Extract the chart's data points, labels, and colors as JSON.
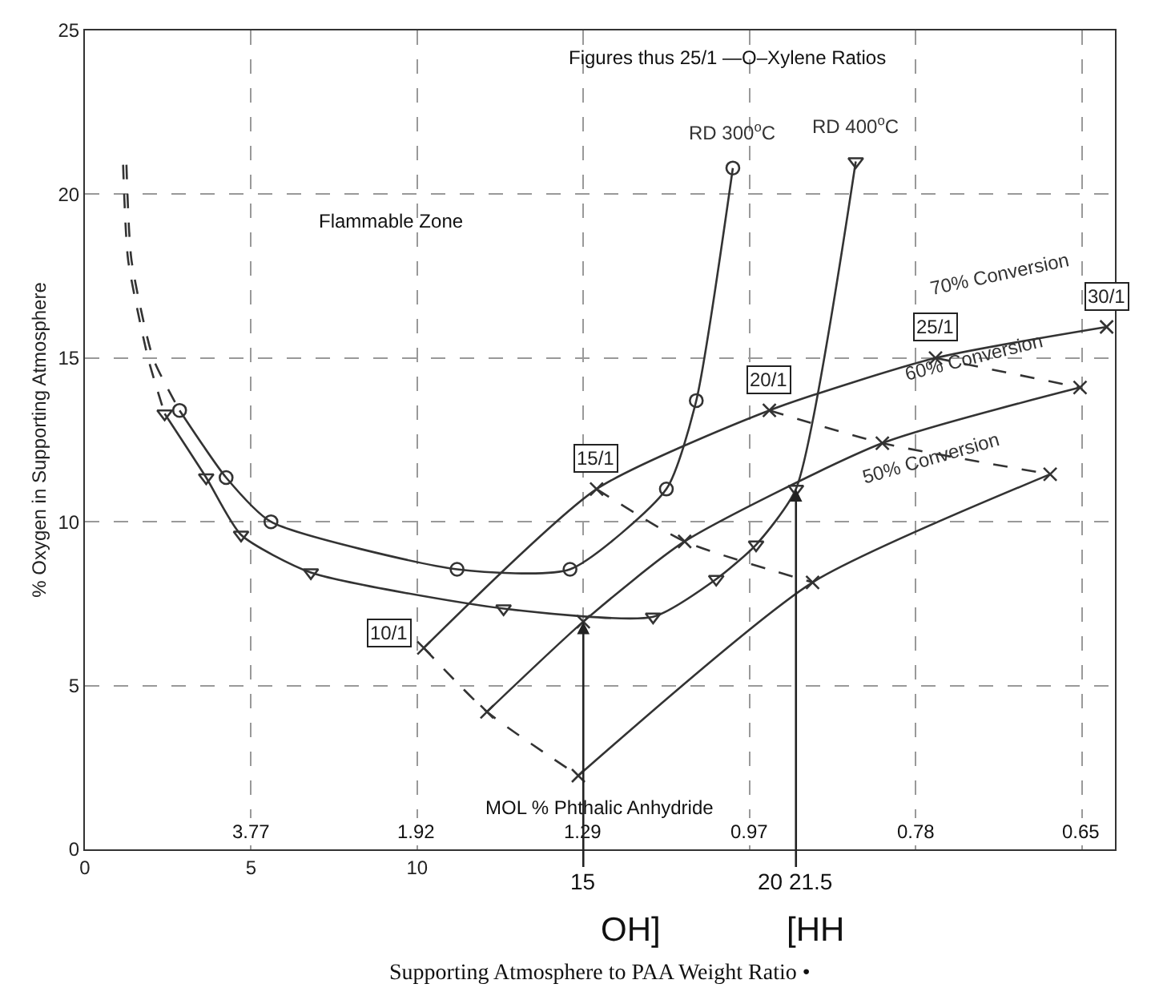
{
  "chart_data": {
    "type": "line",
    "ylabel": "% Oxygen in Supporting Atmosphere",
    "xlim": [
      0,
      31
    ],
    "ylim": [
      0,
      25
    ],
    "xticks": [
      0,
      5,
      10,
      {
        "value": 15,
        "label": null
      },
      {
        "value": 20,
        "label": null
      },
      {
        "value": 25,
        "label": null
      },
      {
        "value": 30,
        "label": null
      }
    ],
    "yticks": [
      0,
      5,
      10,
      15,
      20,
      25
    ],
    "grid": true,
    "legend": false,
    "series": [
      {
        "name": "RD 300$^{o}$C",
        "color": "#333333",
        "marker": "circle",
        "line_style": "solid",
        "x": [
          2.85,
          4.25,
          5.6,
          11.2,
          14.6,
          17.5,
          18.4,
          19.5
        ],
        "values": [
          13.4,
          11.35,
          10.0,
          8.55,
          8.55,
          11.0,
          13.7,
          20.8
        ]
      },
      {
        "name": "RD 400$^{o}$C",
        "color": "#333333",
        "marker": "triangle",
        "line_style": "solid",
        "x": [
          2.4,
          3.65,
          4.7,
          6.8,
          12.6,
          17.1,
          19.0,
          20.2,
          21.4,
          23.2
        ],
        "values": [
          13.3,
          11.35,
          9.6,
          8.45,
          7.35,
          7.1,
          8.25,
          9.3,
          11.0,
          21.0
        ]
      },
      {
        "color": "#333333",
        "marker": "none",
        "line_style": "dashed",
        "x": [
          1.25,
          1.4,
          2.05,
          2.85
        ],
        "values": [
          20.9,
          18.0,
          15.0,
          13.4
        ]
      },
      {
        "color": "#333333",
        "marker": "none",
        "line_style": "dashed",
        "x": [
          1.15,
          1.3,
          1.9,
          2.4
        ],
        "values": [
          20.9,
          18.0,
          15.0,
          13.3
        ]
      },
      {
        "name": "70% Conversion",
        "color": "#333333",
        "marker": "cross",
        "line_style": "solid",
        "x": [
          10.2,
          15.4,
          20.6,
          25.6,
          30.75
        ],
        "values": [
          6.15,
          11.0,
          13.4,
          15.0,
          15.95
        ]
      },
      {
        "name": "60% Conversion",
        "color": "#333333",
        "marker": "cross",
        "line_style": "solid",
        "x": [
          12.1,
          15.0,
          18.05,
          24.0,
          29.95
        ],
        "values": [
          4.2,
          6.95,
          9.4,
          12.4,
          14.1
        ]
      },
      {
        "name": "50% Conversion",
        "color": "#333333",
        "marker": "cross",
        "line_style": "solid",
        "x": [
          14.85,
          21.9,
          29.05
        ],
        "values": [
          2.25,
          8.15,
          11.45
        ]
      },
      {
        "color": "#333333",
        "marker": "none",
        "line_style": "dashed",
        "x": [
          10.2,
          12.1,
          14.85
        ],
        "values": [
          6.15,
          4.2,
          2.25
        ]
      },
      {
        "color": "#333333",
        "marker": "none",
        "line_style": "dashed",
        "x": [
          15.4,
          18.05,
          21.9
        ],
        "values": [
          11.0,
          9.4,
          8.15
        ]
      },
      {
        "color": "#333333",
        "marker": "none",
        "line_style": "dashed",
        "x": [
          20.6,
          24.0,
          29.05
        ],
        "values": [
          13.4,
          12.4,
          11.45
        ]
      },
      {
        "color": "#333333",
        "marker": "none",
        "line_style": "dashed",
        "x": [
          25.6,
          29.95
        ],
        "values": [
          15.0,
          14.1
        ]
      }
    ],
    "annotations": [
      "Figures thus 25/1 —O–Xylene Ratios",
      "Flammable Zone",
      "MOL % Phthalic Anhydride",
      "3.77",
      "1.92",
      "1.29",
      "0.97",
      "0.78",
      "0.65",
      {
        "text": "10/1",
        "x": 10.2,
        "y": 6.15
      },
      {
        "text": "15/1",
        "x": 15.4,
        "y": 11.0
      },
      {
        "text": "20/1",
        "x": 20.6,
        "y": 13.4
      },
      {
        "text": "25/1",
        "x": 25.6,
        "y": 15.0
      },
      {
        "text": "30/1",
        "x": 30.75,
        "y": 15.95
      },
      {
        "text": "15",
        "x": 15.0,
        "y": 6.95
      },
      {
        "text": "20 21.5",
        "x": 21.4,
        "y": 11.0
      },
      "OH]",
      "[HH",
      "Supporting Atmosphere to PAA Weight Ratio •"
    ]
  }
}
